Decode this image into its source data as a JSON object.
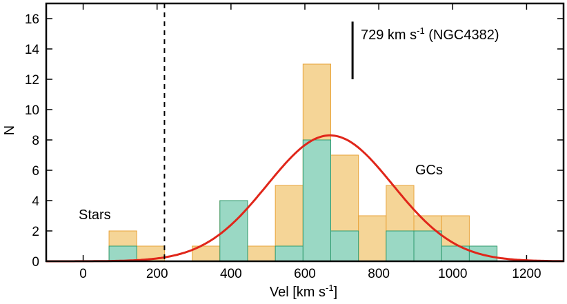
{
  "chart_data": {
    "type": "bar",
    "xlabel": "Vel [km s",
    "xlabel_sup": "-1",
    "xlabel_end": "]",
    "ylabel": "N",
    "xlim": [
      -100,
      1300
    ],
    "ylim": [
      0,
      17
    ],
    "x_ticks": [
      0,
      200,
      400,
      600,
      800,
      1000,
      1200
    ],
    "y_ticks": [
      0,
      2,
      4,
      6,
      8,
      10,
      12,
      14,
      16
    ],
    "bin_edges": [
      70,
      145,
      220,
      295,
      370,
      445,
      520,
      595,
      670,
      745,
      820,
      895,
      970,
      1045,
      1120
    ],
    "series": [
      {
        "values": [
          2,
          1,
          0,
          1,
          4,
          1,
          5,
          13,
          7,
          3,
          5,
          3,
          3,
          1
        ],
        "color": "#f5d597",
        "edge_color": "#e8a33a"
      },
      {
        "values": [
          1,
          0,
          0,
          0,
          4,
          0,
          1,
          8,
          2,
          0,
          2,
          2,
          1,
          1
        ],
        "color": "#9ad8c4",
        "edge_color": "#2f9a6e"
      }
    ],
    "gaussian_fit": {
      "mean": 668,
      "sigma": 170,
      "peak": 8.3,
      "color": "#e0261a"
    },
    "stars_cut_x": 220,
    "galaxy_velocity": {
      "x": 729,
      "y_from": 12.0,
      "y_to": 15.8
    },
    "annotations": {
      "stars": "Stars",
      "gcs": "GCs",
      "vel_value": "729 km s",
      "vel_sup": "-1",
      "vel_suffix": " (NGC4382)"
    }
  }
}
